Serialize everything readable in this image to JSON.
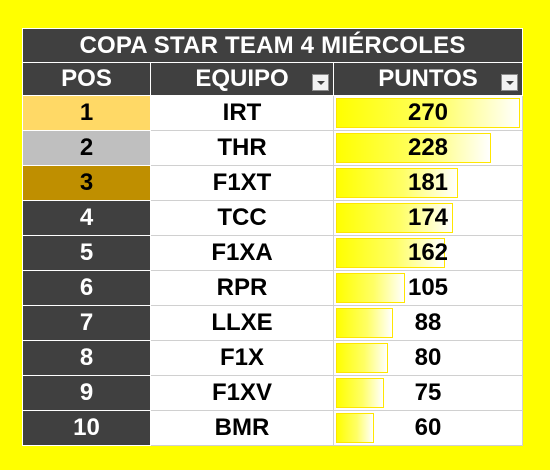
{
  "title": "COPA STAR TEAM 4 MIÉRCOLES",
  "headers": {
    "pos": "POS",
    "team": "EQUIPO",
    "points": "PUNTOS"
  },
  "max_points": 270,
  "colors": {
    "background": "#ffff00",
    "header": "#404040",
    "gold": "#ffd966",
    "silver": "#bfbfbf",
    "bronze": "#bf8f00",
    "databar": "#ffff00"
  },
  "rows": [
    {
      "pos": "1",
      "team": "IRT",
      "points": 270,
      "points_label": "270"
    },
    {
      "pos": "2",
      "team": "THR",
      "points": 228,
      "points_label": "228"
    },
    {
      "pos": "3",
      "team": "F1XT",
      "points": 181,
      "points_label": "181"
    },
    {
      "pos": "4",
      "team": "TCC",
      "points": 174,
      "points_label": "174"
    },
    {
      "pos": "5",
      "team": "F1XA",
      "points": 162,
      "points_label": "162"
    },
    {
      "pos": "6",
      "team": "RPR",
      "points": 105,
      "points_label": "105"
    },
    {
      "pos": "7",
      "team": "LLXE",
      "points": 88,
      "points_label": "88"
    },
    {
      "pos": "8",
      "team": "F1X",
      "points": 80,
      "points_label": "80"
    },
    {
      "pos": "9",
      "team": "F1XV",
      "points": 75,
      "points_label": "75"
    },
    {
      "pos": "10",
      "team": "BMR",
      "points": 60,
      "points_label": "60"
    }
  ]
}
